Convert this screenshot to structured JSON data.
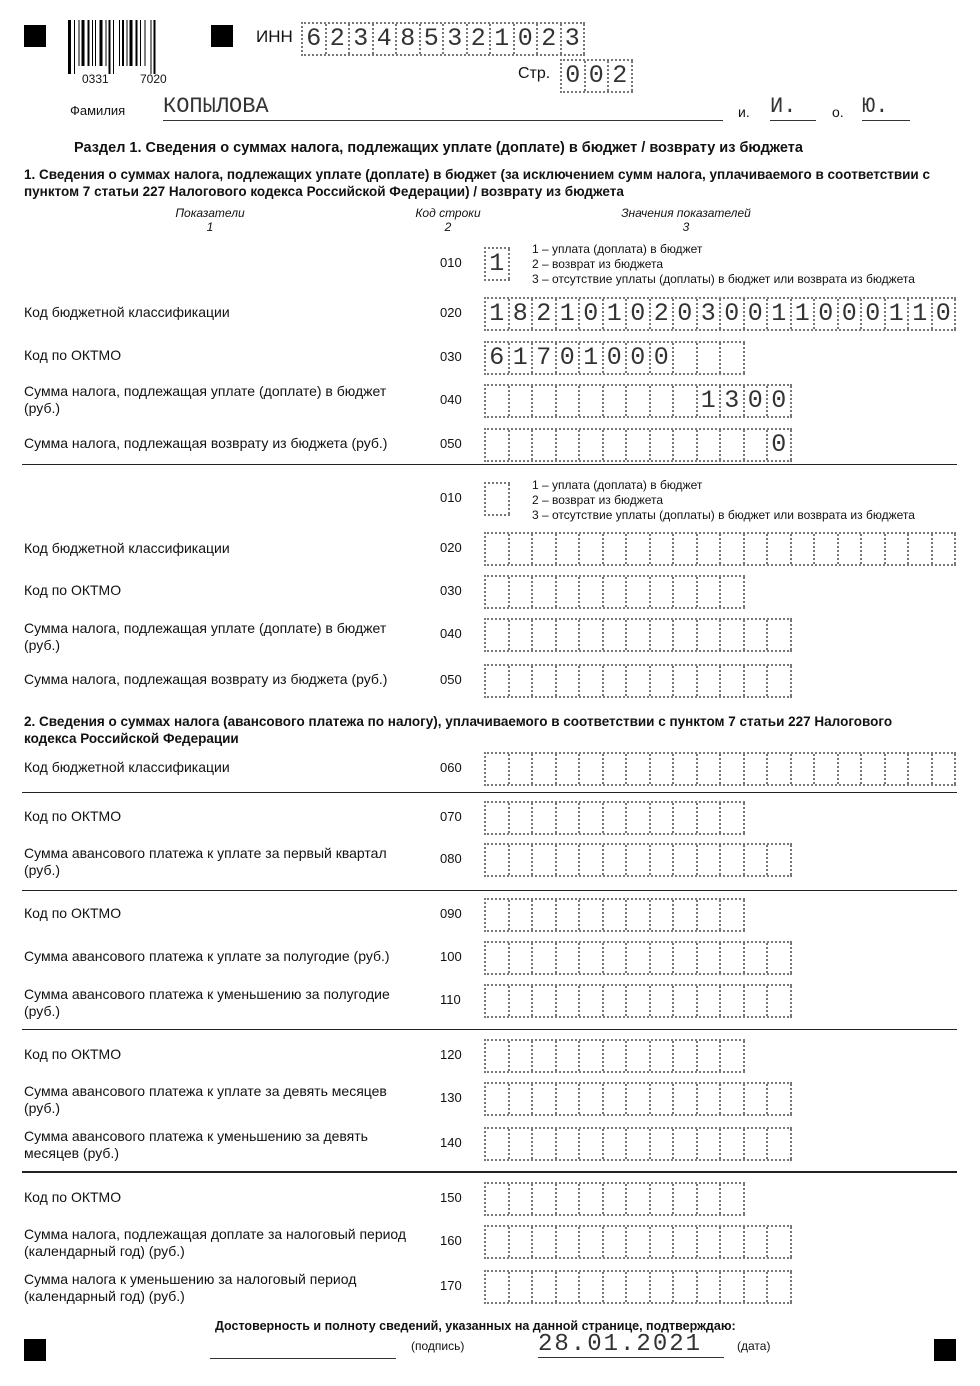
{
  "header": {
    "barcode_numbers": [
      "0331",
      "7020"
    ],
    "inn_label": "ИНН",
    "inn": "623485321023",
    "page_label": "Стр.",
    "page": "002",
    "surname_label": "Фамилия",
    "surname": "КОПЫЛОВА",
    "initial_i_label": "и.",
    "initial_i": "И.",
    "initial_o_label": "о.",
    "initial_o": "Ю."
  },
  "title": "Раздел 1. Сведения о суммах налога, подлежащих уплате (доплате) в бюджет / возврату из бюджета",
  "part1_title": "1. Сведения о суммах налога, подлежащих уплате (доплате) в бюджет (за исключением сумм налога, уплачиваемого в соответствии с пунктом 7 статьи 227 Налогового кодекса Российской Федерации) / возврату из бюджета",
  "columns": [
    {
      "label": "Показатели",
      "num": "1"
    },
    {
      "label": "Код строки",
      "num": "2"
    },
    {
      "label": "Значения показателей",
      "num": "3"
    }
  ],
  "options": [
    "1 – уплата (доплата) в бюджет",
    "2 – возврат из бюджета",
    "3 – отсутствие уплаты (доплаты) в бюджет или возврата из бюджета"
  ],
  "part2_title": "2. Сведения о суммах налога (авансового платежа по налогу), уплачиваемого в соответствии с пунктом 7 статьи 227 Налогового кодекса Российской Федерации",
  "rows": [
    {
      "label": "",
      "code": "010",
      "value": "1"
    },
    {
      "label": "Код бюджетной классификации",
      "code": "020",
      "value": "18210102030011000110"
    },
    {
      "label": "Код по ОКТМО",
      "code": "030",
      "value": "61701000"
    },
    {
      "label": "Сумма налога, подлежащая уплате (доплате) в бюджет (руб.)",
      "code": "040",
      "value": "1300"
    },
    {
      "label": "Сумма налога, подлежащая возврату из бюджета (руб.)",
      "code": "050",
      "value": "0"
    },
    {
      "label": "",
      "code": "010",
      "value": ""
    },
    {
      "label": "Код бюджетной классификации",
      "code": "020",
      "value": ""
    },
    {
      "label": "Код по ОКТМО",
      "code": "030",
      "value": ""
    },
    {
      "label": "Сумма налога, подлежащая уплате (доплате) в бюджет (руб.)",
      "code": "040",
      "value": ""
    },
    {
      "label": "Сумма налога, подлежащая возврату из бюджета (руб.)",
      "code": "050",
      "value": ""
    },
    {
      "label": "Код бюджетной классификации",
      "code": "060",
      "value": ""
    },
    {
      "label": "Код по ОКТМО",
      "code": "070",
      "value": ""
    },
    {
      "label": "Сумма авансового платежа к уплате за первый квартал (руб.)",
      "code": "080",
      "value": ""
    },
    {
      "label": "Код по ОКТМО",
      "code": "090",
      "value": ""
    },
    {
      "label": "Сумма авансового платежа к уплате за полугодие (руб.)",
      "code": "100",
      "value": ""
    },
    {
      "label": "Сумма авансового платежа к уменьшению за полугодие (руб.)",
      "code": "110",
      "value": ""
    },
    {
      "label": "Код по ОКТМО",
      "code": "120",
      "value": ""
    },
    {
      "label": "Сумма авансового платежа к уплате за девять месяцев (руб.)",
      "code": "130",
      "value": ""
    },
    {
      "label": "Сумма авансового платежа к уменьшению за девять месяцев (руб.)",
      "code": "140",
      "value": ""
    },
    {
      "label": "Код по ОКТМО",
      "code": "150",
      "value": ""
    },
    {
      "label": "Сумма налога, подлежащая доплате за налоговый период (календарный год) (руб.)",
      "code": "160",
      "value": ""
    },
    {
      "label": "Сумма налога к уменьшению за налоговый период (календарный год) (руб.)",
      "code": "170",
      "value": ""
    }
  ],
  "footer": {
    "confirm": "Достоверность и полноту сведений, указанных на данной странице, подтверждаю:",
    "signature_label": "(подпись)",
    "date": "28.01.2021",
    "date_label": "(дата)"
  }
}
